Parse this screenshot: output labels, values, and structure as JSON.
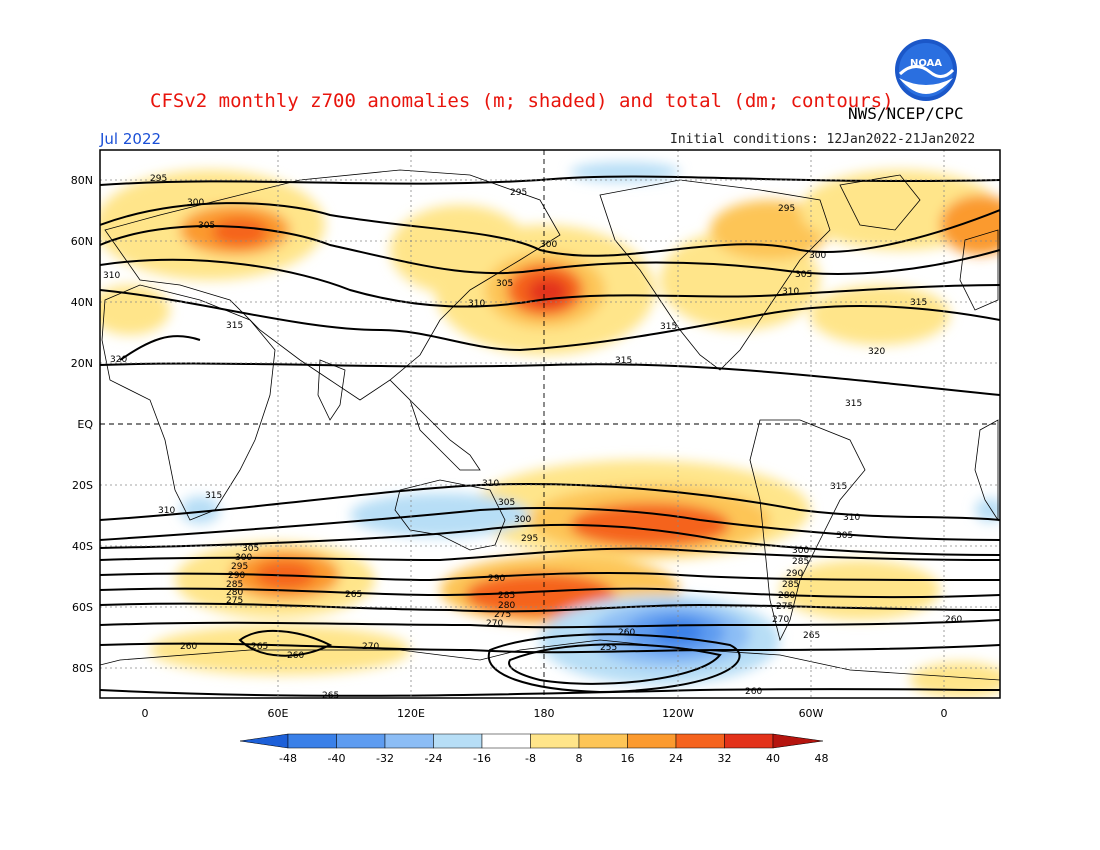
{
  "header": {
    "title": "CFSv2 monthly z700 anomalies (m; shaded) and total (dm; contours)",
    "org": "NWS/NCEP/CPC",
    "logo_text": "NOAA",
    "month": "Jul 2022",
    "initial_conditions": "Initial conditions: 12Jan2022-21Jan2022"
  },
  "map": {
    "lat_labels": [
      "80N",
      "60N",
      "40N",
      "20N",
      "EQ",
      "20S",
      "40S",
      "60S",
      "80S"
    ],
    "lon_labels": [
      "0",
      "60E",
      "120E",
      "180",
      "120W",
      "60W",
      "0"
    ],
    "contour_labels": [
      "295",
      "300",
      "305",
      "310",
      "315",
      "320",
      "310",
      "305",
      "300",
      "295",
      "290",
      "285",
      "280",
      "275",
      "270",
      "265",
      "260",
      "255"
    ]
  },
  "colorbar": {
    "ticks": [
      "-48",
      "-40",
      "-32",
      "-24",
      "-16",
      "-8",
      "8",
      "16",
      "24",
      "32",
      "40",
      "48"
    ],
    "colors": [
      "#1c5fd8",
      "#3a80e8",
      "#5e9cf0",
      "#8cbdf5",
      "#b7def6",
      "#ffffff",
      "#ffe58a",
      "#fdc557",
      "#fb9a2f",
      "#f5631e",
      "#e3321a",
      "#b5140e"
    ]
  },
  "colors": {
    "title": "#e8140c",
    "month": "#1a4fd6"
  }
}
